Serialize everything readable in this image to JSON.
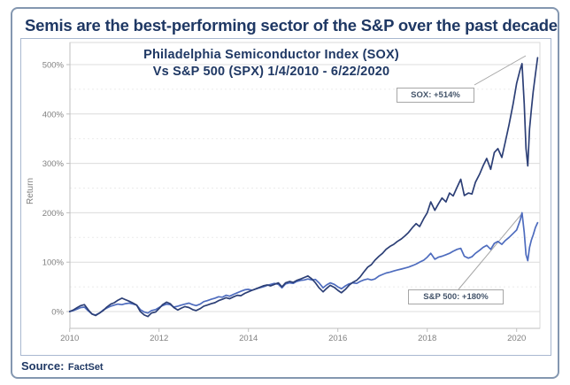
{
  "header": {
    "title": "Semis are the best-performing sector of the S&P over the past decade"
  },
  "source": {
    "label": "Source:",
    "value": "FactSet"
  },
  "colors": {
    "title_navy": "#1f3864",
    "sox_line": "#2c3f76",
    "spx_line": "#4e6cbe",
    "axis_text": "#808080",
    "axis_line": "#bfbfbf",
    "grid_major": "#dcdcdc",
    "grid_minor": "#ebebeb",
    "annotation_border": "#a6a6a6",
    "leader_line": "#a6a6a6",
    "outer_frame_border": "#8497b0",
    "panel_border": "#a9b8d0"
  },
  "chart_data": {
    "type": "line",
    "title_line1": "Philadelphia Semiconductor Index (SOX)",
    "title_line2": "Vs S&P 500 (SPX) 1/4/2010 - 6/22/2020",
    "ylabel": "Return",
    "x_ticks": [
      2010,
      2012,
      2014,
      2016,
      2018,
      2020
    ],
    "y_ticks_pct": [
      0,
      100,
      200,
      300,
      400,
      500
    ],
    "y_minor_ticks_pct": [
      50,
      150,
      250,
      350,
      450
    ],
    "xlim": [
      2010.0,
      2020.6
    ],
    "ylim_pct": [
      -35,
      545
    ],
    "grid": true,
    "legend": "none",
    "annotations": [
      {
        "series": "SOX",
        "text": "SOX: +514%"
      },
      {
        "series": "S&P 500",
        "text": "S&P 500: +180%"
      }
    ],
    "series": [
      {
        "name": "SPX",
        "color": "#4e6cbe",
        "final_return_pct": 180,
        "points": [
          [
            2010.0,
            0
          ],
          [
            2010.08,
            2
          ],
          [
            2010.17,
            5
          ],
          [
            2010.25,
            8
          ],
          [
            2010.33,
            9
          ],
          [
            2010.42,
            1
          ],
          [
            2010.5,
            -5
          ],
          [
            2010.58,
            -7
          ],
          [
            2010.67,
            -3
          ],
          [
            2010.75,
            3
          ],
          [
            2010.83,
            7
          ],
          [
            2010.92,
            11
          ],
          [
            2011.0,
            13
          ],
          [
            2011.08,
            15
          ],
          [
            2011.17,
            14
          ],
          [
            2011.25,
            16
          ],
          [
            2011.33,
            17
          ],
          [
            2011.42,
            15
          ],
          [
            2011.5,
            13
          ],
          [
            2011.58,
            4
          ],
          [
            2011.67,
            -1
          ],
          [
            2011.75,
            -3
          ],
          [
            2011.83,
            2
          ],
          [
            2011.92,
            4
          ],
          [
            2012.0,
            8
          ],
          [
            2012.08,
            12
          ],
          [
            2012.17,
            15
          ],
          [
            2012.25,
            14
          ],
          [
            2012.33,
            9
          ],
          [
            2012.42,
            11
          ],
          [
            2012.5,
            13
          ],
          [
            2012.58,
            15
          ],
          [
            2012.67,
            17
          ],
          [
            2012.75,
            14
          ],
          [
            2012.83,
            12
          ],
          [
            2012.92,
            15
          ],
          [
            2013.0,
            20
          ],
          [
            2013.08,
            22
          ],
          [
            2013.17,
            25
          ],
          [
            2013.25,
            27
          ],
          [
            2013.33,
            30
          ],
          [
            2013.42,
            29
          ],
          [
            2013.5,
            33
          ],
          [
            2013.58,
            31
          ],
          [
            2013.67,
            35
          ],
          [
            2013.75,
            38
          ],
          [
            2013.83,
            41
          ],
          [
            2013.92,
            44
          ],
          [
            2014.0,
            45
          ],
          [
            2014.08,
            43
          ],
          [
            2014.17,
            46
          ],
          [
            2014.25,
            48
          ],
          [
            2014.33,
            50
          ],
          [
            2014.42,
            53
          ],
          [
            2014.5,
            55
          ],
          [
            2014.58,
            57
          ],
          [
            2014.67,
            55
          ],
          [
            2014.75,
            48
          ],
          [
            2014.83,
            56
          ],
          [
            2014.92,
            58
          ],
          [
            2015.0,
            57
          ],
          [
            2015.08,
            61
          ],
          [
            2015.17,
            63
          ],
          [
            2015.25,
            64
          ],
          [
            2015.33,
            66
          ],
          [
            2015.42,
            64
          ],
          [
            2015.5,
            65
          ],
          [
            2015.58,
            58
          ],
          [
            2015.67,
            48
          ],
          [
            2015.75,
            54
          ],
          [
            2015.83,
            58
          ],
          [
            2015.92,
            55
          ],
          [
            2016.0,
            50
          ],
          [
            2016.08,
            46
          ],
          [
            2016.17,
            52
          ],
          [
            2016.25,
            56
          ],
          [
            2016.33,
            58
          ],
          [
            2016.42,
            57
          ],
          [
            2016.5,
            61
          ],
          [
            2016.58,
            64
          ],
          [
            2016.67,
            66
          ],
          [
            2016.75,
            64
          ],
          [
            2016.83,
            66
          ],
          [
            2016.92,
            72
          ],
          [
            2017.0,
            75
          ],
          [
            2017.08,
            78
          ],
          [
            2017.17,
            80
          ],
          [
            2017.25,
            82
          ],
          [
            2017.33,
            84
          ],
          [
            2017.42,
            86
          ],
          [
            2017.5,
            88
          ],
          [
            2017.58,
            90
          ],
          [
            2017.67,
            93
          ],
          [
            2017.75,
            96
          ],
          [
            2017.83,
            100
          ],
          [
            2017.92,
            104
          ],
          [
            2018.0,
            110
          ],
          [
            2018.08,
            118
          ],
          [
            2018.17,
            106
          ],
          [
            2018.25,
            110
          ],
          [
            2018.33,
            112
          ],
          [
            2018.42,
            115
          ],
          [
            2018.5,
            118
          ],
          [
            2018.58,
            122
          ],
          [
            2018.67,
            126
          ],
          [
            2018.75,
            128
          ],
          [
            2018.83,
            112
          ],
          [
            2018.92,
            108
          ],
          [
            2019.0,
            111
          ],
          [
            2019.08,
            118
          ],
          [
            2019.17,
            124
          ],
          [
            2019.25,
            130
          ],
          [
            2019.33,
            134
          ],
          [
            2019.42,
            126
          ],
          [
            2019.5,
            138
          ],
          [
            2019.58,
            142
          ],
          [
            2019.67,
            136
          ],
          [
            2019.75,
            144
          ],
          [
            2019.83,
            150
          ],
          [
            2019.92,
            158
          ],
          [
            2020.0,
            165
          ],
          [
            2020.08,
            185
          ],
          [
            2020.12,
            200
          ],
          [
            2020.17,
            160
          ],
          [
            2020.21,
            115
          ],
          [
            2020.25,
            103
          ],
          [
            2020.29,
            130
          ],
          [
            2020.33,
            145
          ],
          [
            2020.37,
            155
          ],
          [
            2020.42,
            170
          ],
          [
            2020.47,
            180
          ]
        ]
      },
      {
        "name": "SOX",
        "color": "#2c3f76",
        "final_return_pct": 514,
        "points": [
          [
            2010.0,
            0
          ],
          [
            2010.08,
            3
          ],
          [
            2010.17,
            8
          ],
          [
            2010.25,
            12
          ],
          [
            2010.33,
            14
          ],
          [
            2010.42,
            3
          ],
          [
            2010.5,
            -5
          ],
          [
            2010.58,
            -8
          ],
          [
            2010.67,
            -3
          ],
          [
            2010.75,
            2
          ],
          [
            2010.83,
            9
          ],
          [
            2010.92,
            15
          ],
          [
            2011.0,
            18
          ],
          [
            2011.08,
            23
          ],
          [
            2011.17,
            27
          ],
          [
            2011.25,
            24
          ],
          [
            2011.33,
            21
          ],
          [
            2011.42,
            17
          ],
          [
            2011.5,
            13
          ],
          [
            2011.58,
            0
          ],
          [
            2011.67,
            -7
          ],
          [
            2011.75,
            -10
          ],
          [
            2011.83,
            -3
          ],
          [
            2011.92,
            -1
          ],
          [
            2012.0,
            6
          ],
          [
            2012.08,
            14
          ],
          [
            2012.17,
            19
          ],
          [
            2012.25,
            16
          ],
          [
            2012.33,
            8
          ],
          [
            2012.42,
            3
          ],
          [
            2012.5,
            7
          ],
          [
            2012.58,
            10
          ],
          [
            2012.67,
            8
          ],
          [
            2012.75,
            4
          ],
          [
            2012.83,
            2
          ],
          [
            2012.92,
            6
          ],
          [
            2013.0,
            11
          ],
          [
            2013.08,
            13
          ],
          [
            2013.17,
            16
          ],
          [
            2013.25,
            18
          ],
          [
            2013.33,
            22
          ],
          [
            2013.42,
            25
          ],
          [
            2013.5,
            28
          ],
          [
            2013.58,
            26
          ],
          [
            2013.67,
            30
          ],
          [
            2013.75,
            33
          ],
          [
            2013.83,
            32
          ],
          [
            2013.92,
            37
          ],
          [
            2014.0,
            40
          ],
          [
            2014.08,
            43
          ],
          [
            2014.17,
            46
          ],
          [
            2014.25,
            49
          ],
          [
            2014.33,
            52
          ],
          [
            2014.42,
            54
          ],
          [
            2014.5,
            52
          ],
          [
            2014.58,
            55
          ],
          [
            2014.67,
            58
          ],
          [
            2014.75,
            50
          ],
          [
            2014.83,
            58
          ],
          [
            2014.92,
            61
          ],
          [
            2015.0,
            59
          ],
          [
            2015.08,
            63
          ],
          [
            2015.17,
            66
          ],
          [
            2015.25,
            69
          ],
          [
            2015.33,
            72
          ],
          [
            2015.42,
            66
          ],
          [
            2015.5,
            58
          ],
          [
            2015.58,
            48
          ],
          [
            2015.67,
            40
          ],
          [
            2015.75,
            47
          ],
          [
            2015.83,
            53
          ],
          [
            2015.92,
            49
          ],
          [
            2016.0,
            43
          ],
          [
            2016.08,
            38
          ],
          [
            2016.17,
            45
          ],
          [
            2016.25,
            53
          ],
          [
            2016.33,
            59
          ],
          [
            2016.42,
            63
          ],
          [
            2016.5,
            70
          ],
          [
            2016.58,
            80
          ],
          [
            2016.67,
            90
          ],
          [
            2016.75,
            95
          ],
          [
            2016.83,
            104
          ],
          [
            2016.92,
            112
          ],
          [
            2017.0,
            118
          ],
          [
            2017.08,
            126
          ],
          [
            2017.17,
            132
          ],
          [
            2017.25,
            136
          ],
          [
            2017.33,
            142
          ],
          [
            2017.42,
            147
          ],
          [
            2017.5,
            153
          ],
          [
            2017.58,
            160
          ],
          [
            2017.67,
            170
          ],
          [
            2017.75,
            178
          ],
          [
            2017.83,
            172
          ],
          [
            2017.92,
            188
          ],
          [
            2018.0,
            200
          ],
          [
            2018.08,
            222
          ],
          [
            2018.17,
            205
          ],
          [
            2018.25,
            218
          ],
          [
            2018.33,
            230
          ],
          [
            2018.42,
            222
          ],
          [
            2018.5,
            240
          ],
          [
            2018.58,
            234
          ],
          [
            2018.67,
            252
          ],
          [
            2018.75,
            268
          ],
          [
            2018.83,
            235
          ],
          [
            2018.92,
            240
          ],
          [
            2019.0,
            238
          ],
          [
            2019.08,
            262
          ],
          [
            2019.17,
            278
          ],
          [
            2019.25,
            295
          ],
          [
            2019.33,
            310
          ],
          [
            2019.42,
            288
          ],
          [
            2019.5,
            322
          ],
          [
            2019.58,
            330
          ],
          [
            2019.67,
            312
          ],
          [
            2019.75,
            345
          ],
          [
            2019.83,
            378
          ],
          [
            2019.92,
            420
          ],
          [
            2020.0,
            462
          ],
          [
            2020.08,
            490
          ],
          [
            2020.12,
            502
          ],
          [
            2020.17,
            420
          ],
          [
            2020.21,
            330
          ],
          [
            2020.25,
            295
          ],
          [
            2020.29,
            370
          ],
          [
            2020.33,
            410
          ],
          [
            2020.37,
            445
          ],
          [
            2020.42,
            480
          ],
          [
            2020.47,
            514
          ]
        ]
      }
    ]
  }
}
